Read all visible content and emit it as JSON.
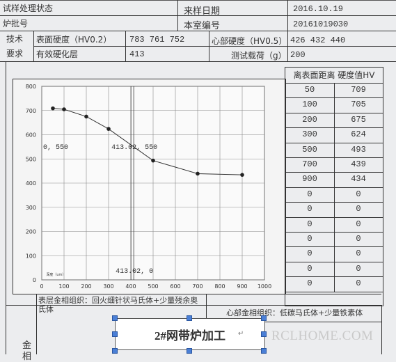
{
  "header": {
    "r1": {
      "l1": "试样处理状态",
      "l2": "来样日期",
      "v2": "2016.10.19"
    },
    "r2": {
      "l1": "炉批号",
      "l2": "本室编号",
      "v2": "20161019030"
    },
    "tech_label_1": "技术",
    "tech_label_2": "要求",
    "r3": {
      "l": "表面硬度（HV0.2）",
      "v": "783  761  752",
      "l2": "心部硬度（HV0.5）",
      "v2": "426  432  440"
    },
    "r4": {
      "l": "有效硬化层",
      "v": "413",
      "l2": "测试载荷（g）",
      "v2": "200"
    }
  },
  "table": {
    "title": "离表面距离 硬度值HV",
    "rows": [
      {
        "d": "50",
        "h": "709"
      },
      {
        "d": "100",
        "h": "705"
      },
      {
        "d": "200",
        "h": "675"
      },
      {
        "d": "300",
        "h": "624"
      },
      {
        "d": "500",
        "h": "493"
      },
      {
        "d": "700",
        "h": "439"
      },
      {
        "d": "900",
        "h": "434"
      },
      {
        "d": "0",
        "h": "0"
      },
      {
        "d": "0",
        "h": "0"
      },
      {
        "d": "0",
        "h": "0"
      },
      {
        "d": "0",
        "h": "0"
      },
      {
        "d": "0",
        "h": "0"
      },
      {
        "d": "0",
        "h": "0"
      },
      {
        "d": "0",
        "h": "0"
      }
    ]
  },
  "chart_data": {
    "type": "line",
    "x": [
      50,
      100,
      200,
      300,
      500,
      700,
      900
    ],
    "y": [
      709,
      705,
      675,
      624,
      493,
      439,
      434
    ],
    "xlim": [
      0,
      1000
    ],
    "ylim": [
      0,
      800
    ],
    "xticks": [
      "0",
      "100",
      "200",
      "300",
      "400",
      "500",
      "600",
      "700",
      "800",
      "900",
      "1000"
    ],
    "yticks": [
      "0",
      "100",
      "200",
      "300",
      "400",
      "500",
      "600",
      "700",
      "800"
    ],
    "xlabel": "深度（um）",
    "annotations": [
      {
        "text": "0, 550",
        "x": 0,
        "y": 550
      },
      {
        "text": "413.02, 550",
        "x": 413.02,
        "y": 550
      },
      {
        "text": "413.02, 0",
        "x": 413.02,
        "y": 0
      }
    ],
    "crosshair": {
      "x": 413.02,
      "y": 550
    },
    "grid": true,
    "line_color": "#333333"
  },
  "footer": {
    "surface_structure": "表层金相组织：回火细针状马氏体+少量残余奥氏体",
    "core_structure": "心部金相组织：低碳马氏体+少量铁素体",
    "side_label": "金",
    "side_label_2": "相",
    "caption": "2#网带炉加工",
    "watermark": "RCLHOME.COM"
  }
}
